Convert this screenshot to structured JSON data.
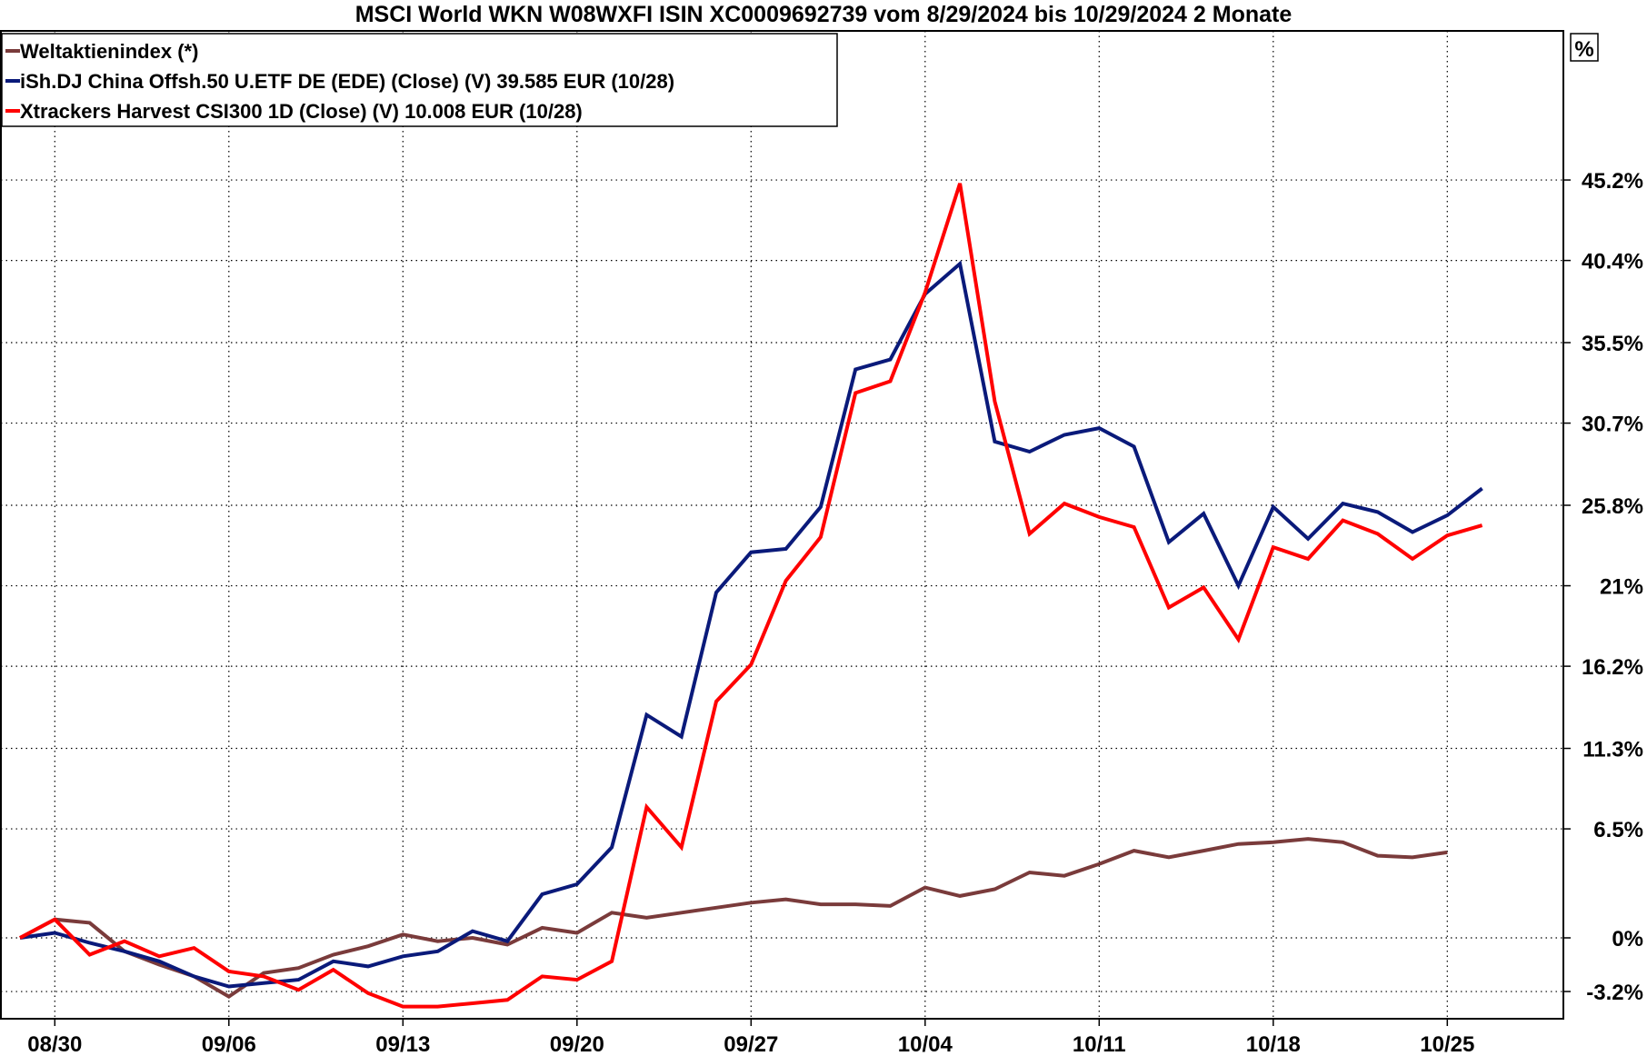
{
  "chart_data": {
    "type": "line",
    "title": "MSCI World WKN W08WXFI ISIN XC0009692739 vom 8/29/2024 bis 10/29/2024 2 Monate",
    "y_unit": "%",
    "ylim": [
      -3.8,
      50
    ],
    "y_ticks": [
      -3.2,
      0,
      6.5,
      11.3,
      16.2,
      21,
      25.8,
      30.7,
      35.5,
      40.4,
      45.2
    ],
    "y_tick_labels": [
      "-3.2%",
      "0%",
      "6.5%",
      "11.3%",
      "16.2%",
      "21%",
      "25.8%",
      "30.7%",
      "35.5%",
      "40.4%",
      "45.2%"
    ],
    "x_ticks": [
      "08/30",
      "09/06",
      "09/13",
      "09/20",
      "09/27",
      "10/04",
      "10/11",
      "10/18",
      "10/25"
    ],
    "x": [
      "08/29",
      "08/30",
      "09/02",
      "09/03",
      "09/04",
      "09/05",
      "09/06",
      "09/09",
      "09/10",
      "09/11",
      "09/12",
      "09/13",
      "09/16",
      "09/17",
      "09/18",
      "09/19",
      "09/20",
      "09/23",
      "09/24",
      "09/25",
      "09/26",
      "09/27",
      "09/30",
      "10/01",
      "10/02",
      "10/03",
      "10/04",
      "10/07",
      "10/08",
      "10/09",
      "10/10",
      "10/11",
      "10/14",
      "10/15",
      "10/16",
      "10/17",
      "10/18",
      "10/21",
      "10/22",
      "10/23",
      "10/24",
      "10/25",
      "10/28"
    ],
    "grid": true,
    "legend_position": "top-left",
    "series": [
      {
        "name": "Weltaktienindex (*)",
        "color": "#7a3b3b",
        "values": [
          0,
          1.1,
          0.9,
          -0.8,
          -1.6,
          -2.3,
          -3.5,
          -2.1,
          -1.8,
          -1.0,
          -0.5,
          0.2,
          -0.2,
          0.0,
          -0.4,
          0.6,
          0.3,
          1.5,
          1.2,
          1.5,
          1.8,
          2.1,
          2.3,
          2.0,
          2.0,
          1.9,
          3.0,
          2.5,
          2.9,
          3.9,
          3.7,
          4.4,
          5.2,
          4.8,
          5.2,
          5.6,
          5.7,
          5.9,
          5.7,
          4.9,
          4.8,
          5.1,
          null
        ]
      },
      {
        "name": "iSh.DJ China Offsh.50 U.ETF DE (EDE) (Close) (V) 39.585 EUR (10/28)",
        "color": "#0a1a7a",
        "values": [
          0,
          0.3,
          -0.3,
          -0.8,
          -1.4,
          -2.3,
          -2.9,
          -2.7,
          -2.5,
          -1.4,
          -1.7,
          -1.1,
          -0.8,
          0.4,
          -0.2,
          2.6,
          3.2,
          5.4,
          13.3,
          12.0,
          20.6,
          23.0,
          23.2,
          25.7,
          33.9,
          34.5,
          38.4,
          40.2,
          29.6,
          29.0,
          30.0,
          30.4,
          29.3,
          23.6,
          25.3,
          21.0,
          25.7,
          23.8,
          25.9,
          25.4,
          24.2,
          25.2,
          26.8
        ]
      },
      {
        "name": "Xtrackers Harvest CSI300 1D (Close) (V) 10.008 EUR (10/28)",
        "color": "#ff0000",
        "values": [
          0,
          1.1,
          -1.0,
          -0.2,
          -1.1,
          -0.6,
          -2.0,
          -2.3,
          -3.1,
          -1.9,
          -3.3,
          -4.1,
          -4.1,
          -3.9,
          -3.7,
          -2.3,
          -2.5,
          -1.4,
          7.8,
          5.4,
          14.1,
          16.3,
          21.3,
          23.9,
          32.5,
          33.2,
          38.5,
          45.0,
          32.0,
          24.1,
          25.9,
          25.1,
          24.5,
          19.7,
          20.9,
          17.8,
          23.3,
          22.6,
          24.9,
          24.1,
          22.6,
          24.0,
          24.6
        ]
      }
    ]
  }
}
